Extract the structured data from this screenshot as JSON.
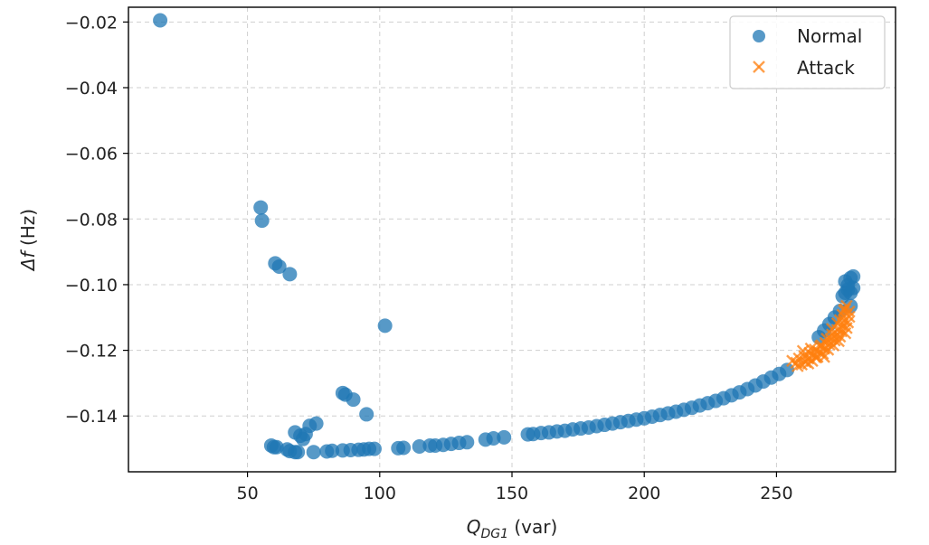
{
  "chart_data": {
    "type": "scatter",
    "xlabel": {
      "main": "Q",
      "sub": "DG1",
      "unit": " (var)"
    },
    "ylabel": {
      "main": "Δf",
      "unit": " (Hz)"
    },
    "xlim": [
      5,
      295
    ],
    "ylim": [
      -0.157,
      -0.0155
    ],
    "xticks": [
      50,
      100,
      150,
      200,
      250
    ],
    "yticks": [
      -0.02,
      -0.04,
      -0.06,
      -0.08,
      -0.1,
      -0.12,
      -0.14
    ],
    "ytick_labels": [
      "−0.02",
      "−0.04",
      "−0.06",
      "−0.08",
      "−0.10",
      "−0.12",
      "−0.14"
    ],
    "grid": true,
    "legend_position": "top-right",
    "colors": {
      "normal": "#1f77b4",
      "attack": "#ff7f0e"
    },
    "series": [
      {
        "name": "Normal",
        "marker": "circle",
        "points": [
          [
            17,
            -0.0195
          ],
          [
            55,
            -0.0765
          ],
          [
            55.5,
            -0.0805
          ],
          [
            60.5,
            -0.0935
          ],
          [
            62,
            -0.0945
          ],
          [
            66,
            -0.0968
          ],
          [
            102,
            -0.1125
          ],
          [
            86,
            -0.133
          ],
          [
            87,
            -0.1335
          ],
          [
            90,
            -0.135
          ],
          [
            95,
            -0.1395
          ],
          [
            76,
            -0.1423
          ],
          [
            73.5,
            -0.143
          ],
          [
            72,
            -0.1455
          ],
          [
            68,
            -0.145
          ],
          [
            70,
            -0.146
          ],
          [
            71,
            -0.147
          ],
          [
            59,
            -0.149
          ],
          [
            60,
            -0.1495
          ],
          [
            61,
            -0.1495
          ],
          [
            65,
            -0.1502
          ],
          [
            66,
            -0.1507
          ],
          [
            68,
            -0.151
          ],
          [
            69,
            -0.151
          ],
          [
            75,
            -0.151
          ],
          [
            80,
            -0.1508
          ],
          [
            82,
            -0.1506
          ],
          [
            86,
            -0.1505
          ],
          [
            89,
            -0.1504
          ],
          [
            92,
            -0.1503
          ],
          [
            94,
            -0.1502
          ],
          [
            96,
            -0.15
          ],
          [
            98,
            -0.15
          ],
          [
            107,
            -0.1498
          ],
          [
            109,
            -0.1497
          ],
          [
            115,
            -0.1493
          ],
          [
            119,
            -0.149
          ],
          [
            121,
            -0.149
          ],
          [
            124,
            -0.1488
          ],
          [
            127,
            -0.1485
          ],
          [
            130,
            -0.1482
          ],
          [
            133,
            -0.148
          ],
          [
            140,
            -0.1472
          ],
          [
            143,
            -0.1468
          ],
          [
            147,
            -0.1465
          ],
          [
            156,
            -0.1456
          ],
          [
            158,
            -0.1455
          ],
          [
            161,
            -0.1452
          ],
          [
            164,
            -0.145
          ],
          [
            167,
            -0.1447
          ],
          [
            170,
            -0.1445
          ],
          [
            173,
            -0.1441
          ],
          [
            176,
            -0.1438
          ],
          [
            179,
            -0.1435
          ],
          [
            182,
            -0.1431
          ],
          [
            185,
            -0.1427
          ],
          [
            188,
            -0.1423
          ],
          [
            191,
            -0.1419
          ],
          [
            194,
            -0.1415
          ],
          [
            197,
            -0.1411
          ],
          [
            200,
            -0.1407
          ],
          [
            203,
            -0.1402
          ],
          [
            206,
            -0.1397
          ],
          [
            209,
            -0.1392
          ],
          [
            212,
            -0.1387
          ],
          [
            215,
            -0.1381
          ],
          [
            218,
            -0.1375
          ],
          [
            221,
            -0.1368
          ],
          [
            224,
            -0.1361
          ],
          [
            227,
            -0.1354
          ],
          [
            230,
            -0.1346
          ],
          [
            233,
            -0.1337
          ],
          [
            236,
            -0.1328
          ],
          [
            239,
            -0.1318
          ],
          [
            242,
            -0.1307
          ],
          [
            245,
            -0.1295
          ],
          [
            248,
            -0.1283
          ],
          [
            251,
            -0.1272
          ],
          [
            254,
            -0.126
          ],
          [
            266,
            -0.116
          ],
          [
            268,
            -0.114
          ],
          [
            270,
            -0.112
          ],
          [
            272,
            -0.11
          ],
          [
            274,
            -0.108
          ],
          [
            275,
            -0.1035
          ],
          [
            276,
            -0.099
          ],
          [
            277,
            -0.1002
          ],
          [
            278,
            -0.098
          ],
          [
            279,
            -0.0975
          ],
          [
            276,
            -0.1025
          ],
          [
            278,
            -0.1025
          ],
          [
            277,
            -0.1015
          ],
          [
            279,
            -0.101
          ],
          [
            278,
            -0.1065
          ]
        ]
      },
      {
        "name": "Attack",
        "marker": "x",
        "points": [
          [
            256,
            -0.1232
          ],
          [
            257.5,
            -0.1238
          ],
          [
            258.5,
            -0.1225
          ],
          [
            259.5,
            -0.1243
          ],
          [
            260.5,
            -0.1218
          ],
          [
            261,
            -0.1236
          ],
          [
            262,
            -0.1225
          ],
          [
            262.5,
            -0.1208
          ],
          [
            263.5,
            -0.1232
          ],
          [
            264,
            -0.1215
          ],
          [
            264.5,
            -0.1198
          ],
          [
            265.5,
            -0.122
          ],
          [
            266,
            -0.1205
          ],
          [
            266.5,
            -0.1188
          ],
          [
            267.5,
            -0.121
          ],
          [
            268,
            -0.1195
          ],
          [
            268.5,
            -0.1178
          ],
          [
            269.5,
            -0.1198
          ],
          [
            270,
            -0.1183
          ],
          [
            270.5,
            -0.1166
          ],
          [
            271,
            -0.1152
          ],
          [
            271.5,
            -0.1185
          ],
          [
            272,
            -0.117
          ],
          [
            272.5,
            -0.1155
          ],
          [
            273,
            -0.1138
          ],
          [
            273.5,
            -0.1172
          ],
          [
            274,
            -0.1158
          ],
          [
            274.5,
            -0.1142
          ],
          [
            275,
            -0.1126
          ],
          [
            275.5,
            -0.111
          ],
          [
            276,
            -0.1148
          ],
          [
            276.5,
            -0.1132
          ],
          [
            277,
            -0.1115
          ],
          [
            277.5,
            -0.1098
          ],
          [
            277.5,
            -0.1082
          ],
          [
            276,
            -0.1075
          ],
          [
            275,
            -0.1092
          ],
          [
            274,
            -0.1108
          ],
          [
            265,
            -0.1222
          ],
          [
            267,
            -0.1185
          ],
          [
            269,
            -0.1165
          ],
          [
            271,
            -0.1135
          ],
          [
            273,
            -0.1118
          ],
          [
            260,
            -0.1202
          ],
          [
            258,
            -0.1248
          ],
          [
            263,
            -0.1195
          ],
          [
            276.5,
            -0.1065
          ],
          [
            275.5,
            -0.1078
          ],
          [
            262,
            -0.124
          ],
          [
            268,
            -0.122
          ]
        ]
      }
    ]
  }
}
